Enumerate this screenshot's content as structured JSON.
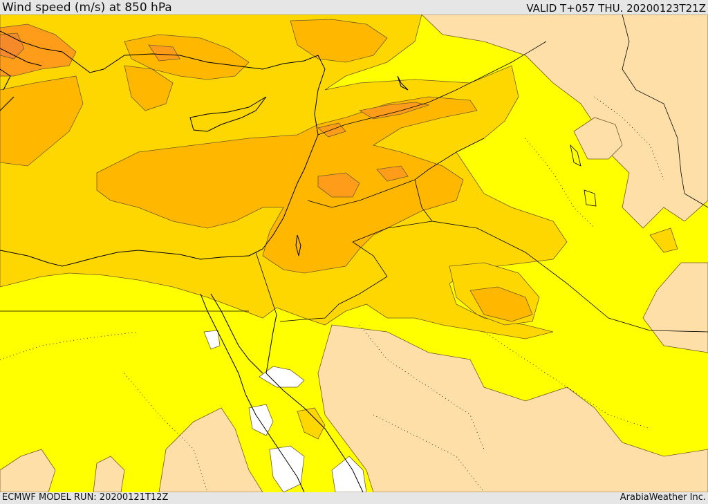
{
  "header": {
    "title": "Wind speed (m/s) at 850 hPa",
    "valid": "VALID T+057 THU. 20200123T21Z"
  },
  "footer": {
    "model_run": "ECMWF MODEL RUN: 20200121T12Z",
    "brand": "ArabiaWeather Inc."
  },
  "colors": {
    "background_yellow": "#ffff00",
    "band_gold": "#ffd700",
    "band_orange": "#ffb700",
    "band_dark_orange": "#ff9c1a",
    "band_red_orange": "#f58a2a",
    "calm_tan": "#ffdfa8",
    "calm_white": "#ffffff",
    "coast": "#000000",
    "border": "#000000",
    "contour": "#6e5a2a"
  }
}
